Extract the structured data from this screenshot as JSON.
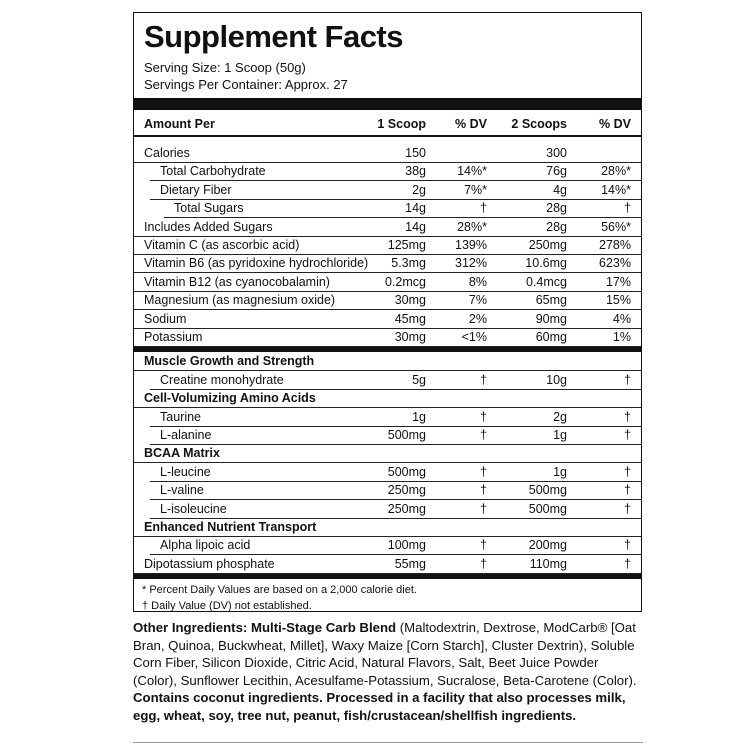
{
  "header": {
    "title": "Supplement Facts",
    "serving_size": "Serving Size: 1 Scoop (50g)",
    "servings_per_container": "Servings Per Container: Approx. 27"
  },
  "columns": [
    "Amount Per",
    "1 Scoop",
    "% DV",
    "2 Scoops",
    "% DV"
  ],
  "nutrients": [
    [
      "Calories",
      "150",
      null,
      "300",
      null
    ],
    [
      "Total Carbohydrate",
      "38g",
      "14%*",
      "76g",
      "28%*"
    ],
    [
      "Dietary Fiber",
      "2g",
      "7%*",
      "4g",
      "14%*"
    ],
    [
      "Total Sugars",
      "14g",
      "†",
      "28g",
      "†"
    ],
    [
      "Includes Added Sugars",
      "14g",
      "28%*",
      "28g",
      "56%*"
    ],
    [
      "Vitamin C (as ascorbic acid)",
      "125mg",
      "139%",
      "250mg",
      "278%"
    ],
    [
      "Vitamin B6 (as pyridoxine hydrochloride)",
      "5.3mg",
      "312%",
      "10.6mg",
      "623%"
    ],
    [
      "Vitamin B12 (as cyanocobalamin)",
      "0.2mcg",
      "8%",
      "0.4mcg",
      "17%"
    ],
    [
      "Magnesium (as magnesium oxide)",
      "30mg",
      "7%",
      "65mg",
      "15%"
    ],
    [
      "Sodium",
      "45mg",
      "2%",
      "90mg",
      "4%"
    ],
    [
      "Potassium",
      "30mg",
      "<1%",
      "60mg",
      "1%"
    ]
  ],
  "blends": [
    {
      "name": "Muscle Growth and Strength",
      "items": [
        [
          "Creatine monohydrate",
          "5g",
          "†",
          "10g",
          "†"
        ]
      ]
    },
    {
      "name": "Cell-Volumizing Amino Acids",
      "items": [
        [
          "Taurine",
          "1g",
          "†",
          "2g",
          "†"
        ],
        [
          "L-alanine",
          "500mg",
          "†",
          "1g",
          "†"
        ]
      ]
    },
    {
      "name": "BCAA Matrix",
      "items": [
        [
          "L-leucine",
          "500mg",
          "†",
          "1g",
          "†"
        ],
        [
          "L-valine",
          "250mg",
          "†",
          "500mg",
          "†"
        ],
        [
          "L-isoleucine",
          "250mg",
          "†",
          "500mg",
          "†"
        ]
      ]
    },
    {
      "name": "Enhanced Nutrient Transport",
      "items": [
        [
          "Alpha lipoic acid",
          "100mg",
          "†",
          "200mg",
          "†"
        ]
      ]
    }
  ],
  "additional": [
    [
      "Dipotassium phosphate",
      "55mg",
      "†",
      "110mg",
      "†"
    ]
  ],
  "footnotes": [
    "* Percent Daily Values are based on a 2,000 calorie diet.",
    "† Daily Value (DV) not established."
  ],
  "other_ingredients": {
    "label": "Other Ingredients:",
    "blend_name": "Multi-Stage Carb Blend",
    "ingredients": "(Maltodextrin, Dextrose, ModCarb® [Oat Bran, Quinoa, Buckwheat, Millet], Waxy Maize [Corn Starch], Cluster Dextrin), Soluble Corn Fiber, Silicon Dioxide, Citric Acid, Natural Flavors, Salt, Beet Juice Powder (Color), Sunflower Lecithin, Acesulfame-Potassium, Sucralose, Beta-Carotene (Color).",
    "allergen_statement": "Contains coconut ingredients. Processed in a facility that also processes milk, egg, wheat, soy, tree nut, peanut, fish/crustacean/shellfish ingredients."
  }
}
